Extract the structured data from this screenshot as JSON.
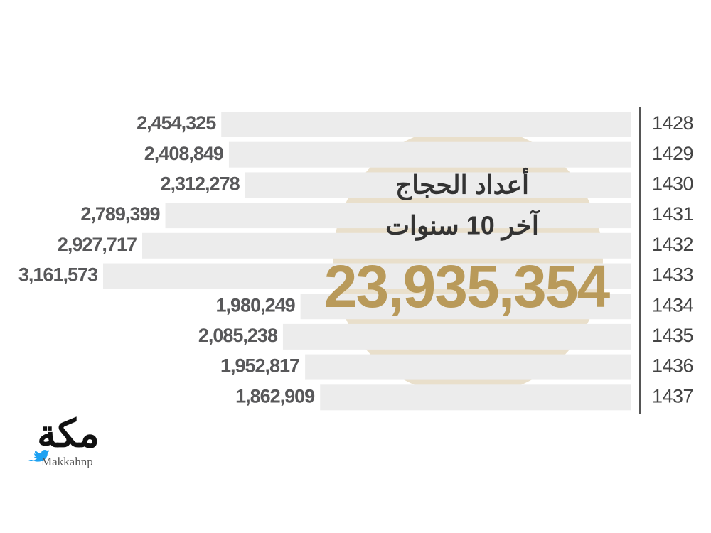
{
  "chart_data": {
    "type": "bar",
    "orientation": "horizontal",
    "title": "أعداد الحجاج",
    "subtitle": "آخر 10 سنوات",
    "total": {
      "value": 23935354,
      "label": "23,935,354"
    },
    "categories": [
      "1428",
      "1429",
      "1430",
      "1431",
      "1432",
      "1433",
      "1434",
      "1435",
      "1436",
      "1437"
    ],
    "values": [
      2454325,
      2408849,
      2312278,
      2789399,
      2927717,
      3161573,
      1980249,
      2085238,
      1952817,
      1862909
    ],
    "value_labels": [
      "2,454,325",
      "2,408,849",
      "2,312,278",
      "2,789,399",
      "2,927,717",
      "3,161,573",
      "1,980,249",
      "2,085,238",
      "1,952,817",
      "1,862,909"
    ],
    "color": "#ececec",
    "xlim": [
      0,
      3200000
    ]
  },
  "logo": {
    "name": "مكة",
    "handle": "Makkahnp"
  }
}
